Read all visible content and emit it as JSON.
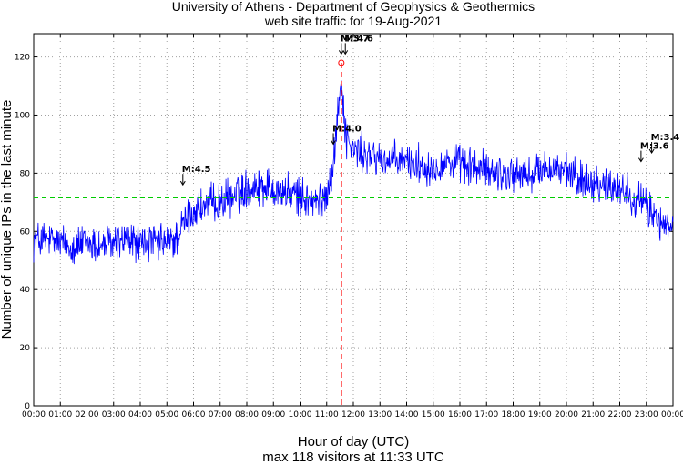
{
  "chart_data": {
    "type": "line",
    "title_line1": "University of Athens - Department of Geophysics & Geothermics",
    "title_line2": "web site traffic for 19-Aug-2021",
    "xlabel": "Hour of day (UTC)",
    "xlabel_sub": "max 118 visitors at 11:33 UTC",
    "ylabel": "Number of unique IPs in the last minute",
    "xlim": [
      0,
      24
    ],
    "ylim": [
      0,
      128
    ],
    "grid": true,
    "x_tick_labels": [
      "00:00",
      "01:00",
      "02:00",
      "03:00",
      "04:00",
      "05:00",
      "06:00",
      "07:00",
      "08:00",
      "09:00",
      "10:00",
      "11:00",
      "12:00",
      "13:00",
      "14:00",
      "15:00",
      "16:00",
      "17:00",
      "18:00",
      "19:00",
      "20:00",
      "21:00",
      "22:00",
      "23:00",
      "00:00"
    ],
    "y_ticks": [
      0,
      20,
      40,
      60,
      80,
      100,
      120
    ],
    "mean_line": {
      "value": 71.5,
      "color": "#00cc00"
    },
    "max_line": {
      "x_hour": 11.55,
      "value": 118,
      "color": "#ff0000"
    },
    "series_color": "#0000ff",
    "series": [
      {
        "name": "unique IPs per minute",
        "x_hours": [
          0,
          0.5,
          1,
          1.5,
          2,
          2.5,
          3,
          3.5,
          4,
          4.5,
          5,
          5.3,
          5.6,
          6,
          6.5,
          7,
          7.5,
          8,
          8.5,
          9,
          9.5,
          10,
          10.5,
          10.8,
          11,
          11.2,
          11.35,
          11.45,
          11.55,
          11.65,
          11.75,
          12,
          12.5,
          13,
          13.5,
          14,
          14.5,
          15,
          15.5,
          16,
          16.5,
          17,
          17.5,
          18,
          18.5,
          19,
          19.5,
          20,
          20.5,
          21,
          21.5,
          22,
          22.5,
          22.8,
          23,
          23.3,
          23.6,
          24
        ],
        "values": [
          57,
          57,
          56,
          55,
          56,
          55,
          56,
          57,
          56,
          56,
          56,
          57,
          62,
          67,
          69,
          70,
          72,
          75,
          76,
          75,
          73,
          72,
          70,
          70,
          74,
          80,
          92,
          105,
          112,
          100,
          92,
          88,
          86,
          85,
          84,
          84,
          83,
          82,
          84,
          83,
          82,
          81,
          80,
          80,
          79,
          81,
          82,
          80,
          78,
          77,
          76,
          75,
          72,
          70,
          68,
          66,
          62,
          60
        ],
        "noise_amplitude": 10
      }
    ],
    "annotations": [
      {
        "text": "M:4.5",
        "x_hour": 5.6,
        "y": 76
      },
      {
        "text": "M:4.0",
        "x_hour": 11.25,
        "y": 90
      },
      {
        "text": "M:3.7",
        "x_hour": 11.55,
        "y": 121
      },
      {
        "text": "M:4.6",
        "x_hour": 11.7,
        "y": 121
      },
      {
        "text": "M:3.6",
        "x_hour": 22.8,
        "y": 84
      },
      {
        "text": "M:3.4",
        "x_hour": 23.2,
        "y": 87
      }
    ]
  }
}
